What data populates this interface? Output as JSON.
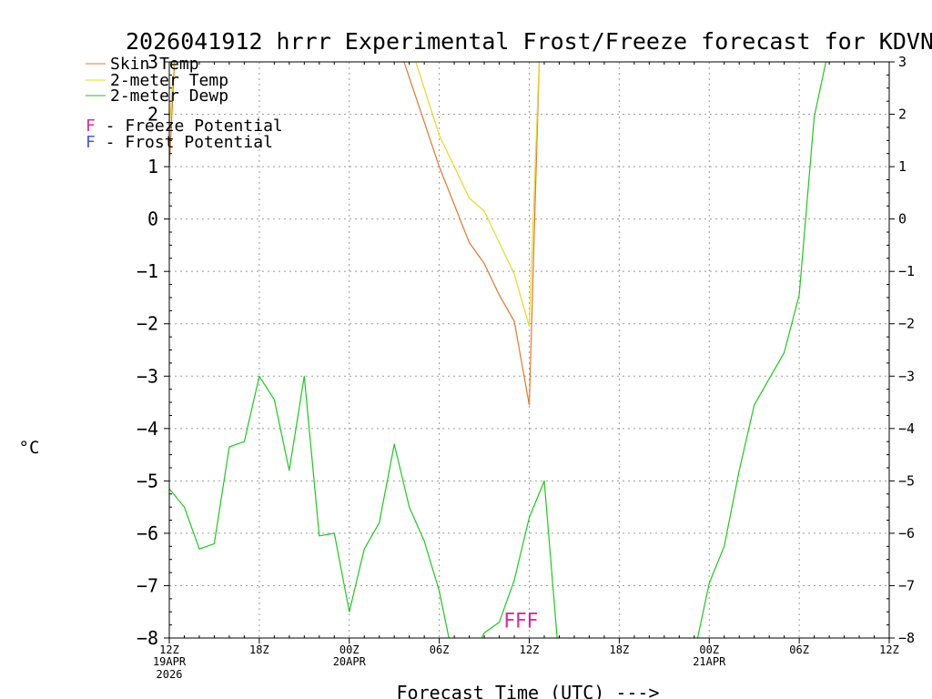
{
  "chart_data": {
    "type": "line",
    "title": "2026041912 hrrr Experimental Frost/Freeze forecast for KDVN",
    "xlabel": "Forecast Time (UTC) --->",
    "ylabel": "°C",
    "x_unit": "forecast hours from 2026-04-19 12Z",
    "xlim": [
      0,
      48
    ],
    "ylim": [
      -8,
      3
    ],
    "grid": true,
    "legend_position": "top-left",
    "y_ticks": [
      -8,
      -7,
      -6,
      -5,
      -4,
      -3,
      -2,
      -1,
      0,
      1,
      2,
      3
    ],
    "y_tick_labels": [
      "−8",
      "−7",
      "−6",
      "−5",
      "−4",
      "−3",
      "−2",
      "−1",
      "0",
      "1",
      "2",
      "3"
    ],
    "x_ticks": [
      {
        "hour": 0,
        "label": "12Z",
        "sub1": "19APR",
        "sub2": "2026"
      },
      {
        "hour": 6,
        "label": "18Z",
        "sub1": "",
        "sub2": ""
      },
      {
        "hour": 12,
        "label": "00Z",
        "sub1": "20APR",
        "sub2": ""
      },
      {
        "hour": 18,
        "label": "06Z",
        "sub1": "",
        "sub2": ""
      },
      {
        "hour": 24,
        "label": "12Z",
        "sub1": "",
        "sub2": ""
      },
      {
        "hour": 30,
        "label": "18Z",
        "sub1": "",
        "sub2": ""
      },
      {
        "hour": 36,
        "label": "00Z",
        "sub1": "21APR",
        "sub2": ""
      },
      {
        "hour": 42,
        "label": "06Z",
        "sub1": "",
        "sub2": ""
      },
      {
        "hour": 48,
        "label": "12Z",
        "sub1": "",
        "sub2": ""
      }
    ],
    "series": [
      {
        "name": "Skin Temp",
        "color": "#e0782d",
        "x": [
          0,
          0.4,
          15.3,
          18,
          20,
          21,
          22,
          23,
          24,
          24.7
        ],
        "y": [
          1.0,
          3.3,
          3.3,
          1.0,
          -0.45,
          -0.85,
          -1.45,
          -1.95,
          -3.55,
          3.3
        ]
      },
      {
        "name": "2-meter Temp",
        "color": "#e8d820",
        "x": [
          0,
          0.4,
          16.1,
          18,
          20,
          21,
          22,
          23,
          24,
          24.7
        ],
        "y": [
          1.7,
          3.3,
          3.3,
          1.6,
          0.4,
          0.15,
          -0.45,
          -1.05,
          -2.05,
          3.3
        ]
      },
      {
        "name": "2-meter Dewp",
        "color": "#1ec81e",
        "x": [
          0,
          1,
          2,
          3,
          4,
          5,
          6,
          7,
          8,
          9,
          10,
          11,
          12,
          13,
          14,
          15,
          16,
          17,
          18,
          19,
          20,
          21,
          22,
          23,
          24,
          25,
          26,
          27,
          28,
          29,
          30,
          31,
          32,
          33,
          34,
          35,
          36,
          37,
          38,
          39,
          40,
          41,
          42,
          43,
          44
        ],
        "y": [
          -5.15,
          -5.5,
          -6.3,
          -6.2,
          -4.35,
          -4.25,
          -3.0,
          -3.45,
          -4.8,
          -3.0,
          -6.05,
          -6.0,
          -7.5,
          -6.3,
          -5.8,
          -4.3,
          -5.5,
          -6.15,
          -7.1,
          -8.5,
          -8.5,
          -7.9,
          -7.7,
          -6.9,
          -5.7,
          -5.0,
          -8.5,
          -8.5,
          -8.5,
          -8.5,
          -8.5,
          -8.5,
          -8.5,
          -8.5,
          -8.5,
          -8.3,
          -6.95,
          -6.25,
          -4.8,
          -3.55,
          -3.05,
          -2.55,
          -1.45,
          1.95,
          3.3
        ]
      }
    ],
    "legend": [
      {
        "label": "Skin Temp",
        "color": "#e0782d"
      },
      {
        "label": "2-meter Temp",
        "color": "#e8d820"
      },
      {
        "label": "2-meter Dewp",
        "color": "#1ec81e"
      }
    ],
    "potential_key": [
      {
        "letter": "F",
        "label": " - Freeze Potential",
        "color": "#d42ea0"
      },
      {
        "letter": "F",
        "label": " - Frost Potential",
        "color": "#4a5ad8"
      }
    ],
    "annotations": [
      {
        "text": "FFF",
        "x": 22.3,
        "y": -7.8,
        "color": "#d42ea0"
      }
    ]
  }
}
